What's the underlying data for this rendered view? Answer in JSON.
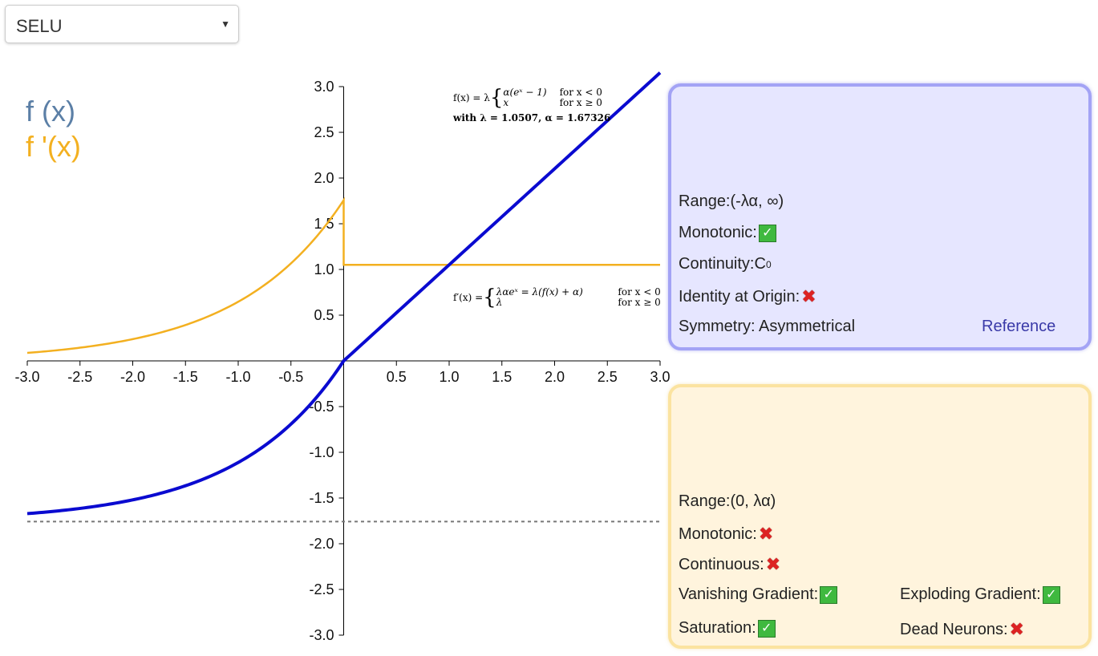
{
  "selector": {
    "value": "SELU",
    "arrow": "▼"
  },
  "legend": {
    "fx": "f (x)",
    "dfx": "f '(x)"
  },
  "formulas": {
    "f_lhs": "f(x) = λ",
    "f_case1_expr": "α(eˣ − 1)",
    "f_case1_cond": "for x < 0",
    "f_case2_expr": "x",
    "f_case2_cond": "for x ≥ 0",
    "f_params": "with λ = 1.0507, α = 1.67326",
    "df_lhs": "f′(x) =",
    "df_case1_expr": "λαeˣ = λ(f(x) + α)",
    "df_case1_cond": "for x < 0",
    "df_case2_expr": "λ",
    "df_case2_cond": "for x ≥ 0"
  },
  "panel_function": {
    "range_label": "Range:",
    "range_value": "(-λα, ∞)",
    "monotonic_label": "Monotonic:",
    "monotonic_icon": "check-icon",
    "continuity_label": "Continuity:",
    "continuity_value": "C",
    "continuity_sup": "0",
    "identity_label": "Identity at Origin:",
    "identity_icon": "cross-icon",
    "symmetry_label": "Symmetry: Asymmetrical",
    "reference_link": "Reference"
  },
  "panel_derivative": {
    "range_label": "Range:",
    "range_value": "(0, λα)",
    "monotonic_label": "Monotonic:",
    "monotonic_icon": "cross-icon",
    "continuous_label": "Continuous:",
    "continuous_icon": "cross-icon",
    "vanishing_label": "Vanishing Gradient:",
    "vanishing_icon": "check-icon",
    "exploding_label": "Exploding Gradient:",
    "exploding_icon": "check-icon",
    "saturation_label": "Saturation:",
    "saturation_icon": "check-icon",
    "dead_label": "Dead Neurons:",
    "dead_icon": "cross-icon"
  },
  "colors": {
    "fx_line": "#0a0ad0",
    "dfx_line": "#f3b020",
    "legend_fx": "#5b7fa6",
    "asymptote": "#777777",
    "panel_blue": "#e6e6ff",
    "panel_yellow": "#fff4dd",
    "check": "#3fb93f",
    "cross": "#dd2222"
  },
  "chart_data": {
    "type": "line",
    "xlim": [
      -3.0,
      3.0
    ],
    "ylim": [
      -3.0,
      3.0
    ],
    "x_ticks": [
      "-3.0",
      "-2.5",
      "-2.0",
      "-1.5",
      "-1.0",
      "-0.5",
      "0.5",
      "1.0",
      "1.5",
      "2.0",
      "2.5",
      "3.0"
    ],
    "y_ticks": [
      "3.0",
      "2.5",
      "2.0",
      "1.5",
      "1.0",
      "0.5",
      "-0.5",
      "-1.0",
      "-1.5",
      "-2.0",
      "-2.5",
      "-3.0"
    ],
    "lambda": 1.0507,
    "alpha": 1.67326,
    "asymptote_y": -1.758,
    "series": [
      {
        "key": "f",
        "x": [
          -3.0,
          -2.5,
          -2.0,
          -1.5,
          -1.0,
          -0.75,
          -0.5,
          -0.25,
          0.0,
          0.5,
          1.0,
          1.5,
          2.0,
          2.5,
          3.0
        ],
        "y": [
          -1.671,
          -1.614,
          -1.52,
          -1.366,
          -1.111,
          -0.928,
          -0.692,
          -0.389,
          0.0,
          0.525,
          1.051,
          1.576,
          2.101,
          2.627,
          3.152
        ]
      },
      {
        "key": "df",
        "x": [
          -3.0,
          -2.5,
          -2.0,
          -1.5,
          -1.0,
          -0.75,
          -0.5,
          -0.25,
          0.0,
          0.0,
          0.5,
          1.0,
          1.5,
          2.0,
          2.5,
          3.0
        ],
        "y": [
          0.0875,
          0.144,
          0.238,
          0.392,
          0.647,
          0.83,
          1.066,
          1.369,
          1.758,
          1.051,
          1.051,
          1.051,
          1.051,
          1.051,
          1.051,
          1.051
        ]
      }
    ]
  }
}
